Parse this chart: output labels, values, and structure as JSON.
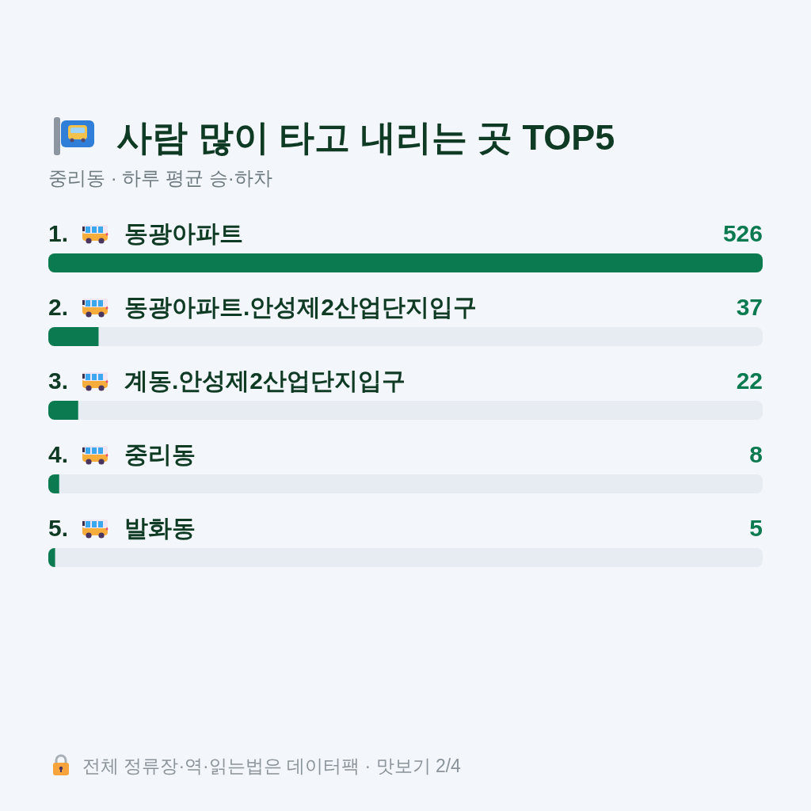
{
  "chart_data": {
    "type": "bar",
    "orientation": "horizontal",
    "title": "사람 많이 타고 내리는 곳 TOP5",
    "subtitle": "중리동 · 하루 평균 승·하차",
    "categories": [
      "1. 동광아파트",
      "2. 동광아파트.안성제2산업단지입구",
      "3. 계동.안성제2산업단지입구",
      "4. 중리동",
      "5. 발화동"
    ],
    "values": [
      526,
      37,
      22,
      8,
      5
    ],
    "color": "#0b7a50",
    "data_labels": true,
    "annotations": [
      "전체 정류장·역·읽는법은 데이터팩 · 맛보기 2/4"
    ]
  }
}
